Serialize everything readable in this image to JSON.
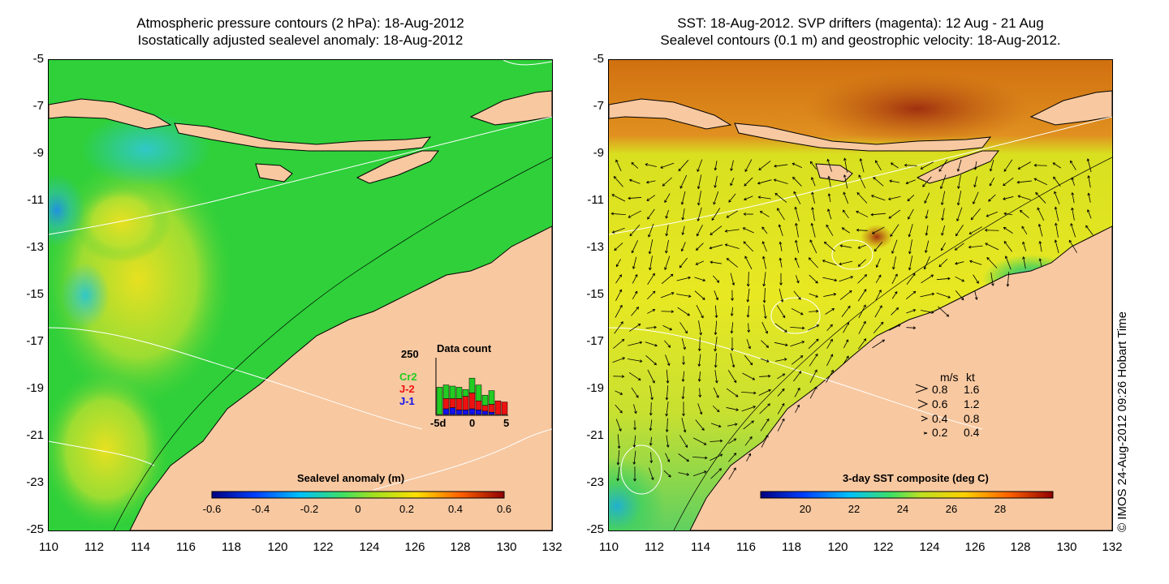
{
  "left_panel": {
    "title_line1": "Atmospheric pressure contours (2 hPa): 18-Aug-2012",
    "title_line2": "Isostatically adjusted sealevel anomaly: 18-Aug-2012",
    "colorbar": {
      "label": "Sealevel anomaly (m)",
      "ticks": [
        "-0.6",
        "-0.4",
        "-0.2",
        "0",
        "0.2",
        "0.4",
        "0.6"
      ]
    },
    "inset": {
      "title": "Data count",
      "ymax": "250",
      "x_ticks": [
        "-5d",
        "0",
        "5"
      ],
      "legend": [
        {
          "name": "Cr2",
          "color": "#22cc22"
        },
        {
          "name": "J-2",
          "color": "#ee1111"
        },
        {
          "name": "J-1",
          "color": "#1111ee"
        }
      ],
      "bars": [
        {
          "day": -5,
          "cr2": 120,
          "j2": 0,
          "j1": 0
        },
        {
          "day": -4,
          "cr2": 60,
          "j2": 45,
          "j1": 25
        },
        {
          "day": -3,
          "cr2": 55,
          "j2": 40,
          "j1": 30
        },
        {
          "day": -2,
          "cr2": 50,
          "j2": 50,
          "j1": 20
        },
        {
          "day": -1,
          "cr2": 30,
          "j2": 60,
          "j1": 20
        },
        {
          "day": 0,
          "cr2": 65,
          "j2": 70,
          "j1": 25
        },
        {
          "day": 1,
          "cr2": 70,
          "j2": 40,
          "j1": 20
        },
        {
          "day": 2,
          "cr2": 45,
          "j2": 25,
          "j1": 15
        },
        {
          "day": 3,
          "cr2": 60,
          "j2": 35,
          "j1": 10
        },
        {
          "day": 4,
          "cr2": 0,
          "j2": 60,
          "j1": 0
        },
        {
          "day": 5,
          "cr2": 0,
          "j2": 55,
          "j1": 0
        }
      ]
    }
  },
  "right_panel": {
    "title_line1": "SST: 18-Aug-2012. SVP drifters (magenta): 12 Aug - 21 Aug",
    "title_line2": "Sealevel contours (0.1 m) and geostrophic velocity: 18-Aug-2012.",
    "colorbar": {
      "label": "3-day SST composite (deg C)",
      "ticks": [
        "20",
        "22",
        "24",
        "26",
        "28"
      ]
    },
    "velocity_legend": {
      "header_ms": "m/s",
      "header_kt": "kt",
      "rows": [
        {
          "ms": "0.8",
          "kt": "1.6"
        },
        {
          "ms": "0.6",
          "kt": "1.2"
        },
        {
          "ms": "0.4",
          "kt": "0.8"
        },
        {
          "ms": "0.2",
          "kt": "0.4"
        }
      ]
    }
  },
  "axes": {
    "lat_ticks": [
      "-5",
      "-7",
      "-9",
      "-11",
      "-13",
      "-15",
      "-17",
      "-19",
      "-21",
      "-23",
      "-25"
    ],
    "lon_ticks": [
      "110",
      "112",
      "114",
      "116",
      "118",
      "120",
      "122",
      "124",
      "126",
      "128",
      "130",
      "132"
    ]
  },
  "credit": "© IMOS 24-Aug-2012 09:26 Hobart Time",
  "colors": {
    "land": "#f8c8a0",
    "sla_field": "#22cc33",
    "sst_field": "#e0e822",
    "warm_sst": "#cc6010"
  }
}
